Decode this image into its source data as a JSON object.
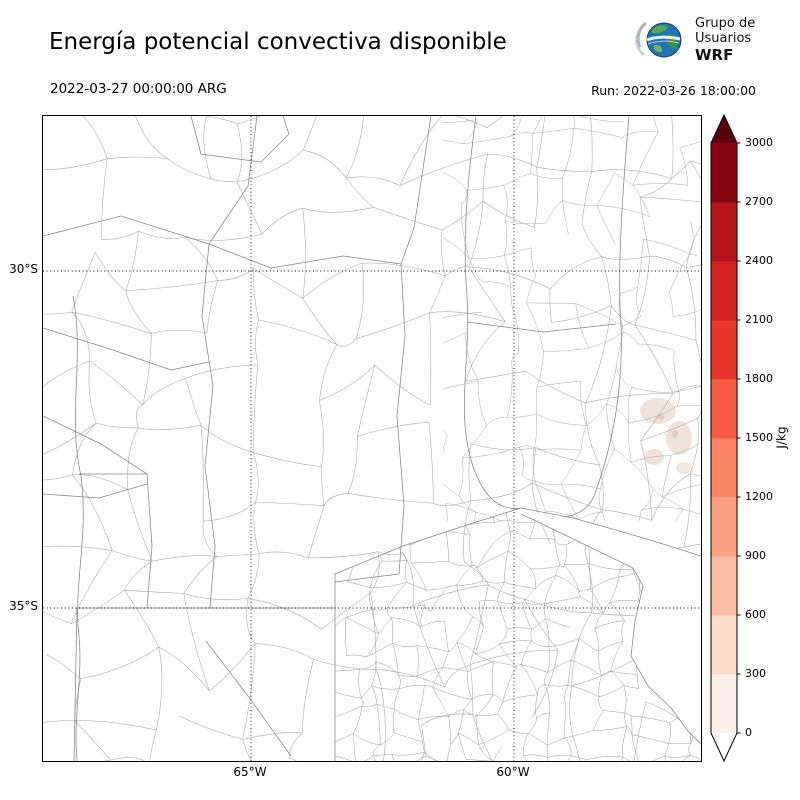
{
  "header": {
    "title": "Energía potencial convectiva disponible",
    "valid_time": "2022-03-27 00:00:00 ARG",
    "run_label": "Run: 2022-03-26 18:00:00",
    "logo": {
      "line1": "Grupo de",
      "line2": "Usuarios",
      "line3": "WRF"
    }
  },
  "map": {
    "lat_ticks": [
      {
        "label": "30°S"
      },
      {
        "label": "35°S"
      }
    ],
    "lon_ticks": [
      {
        "label": "65°W"
      },
      {
        "label": "60°W"
      }
    ],
    "cape_patches": [
      {
        "region": "northeast (Entre Ríos / Uruguay border area)",
        "approx_value_jkg": 150
      },
      {
        "region": "Río de la Plata coastal area",
        "approx_value_jkg": 150
      }
    ]
  },
  "colorbar": {
    "unit": "J/kg",
    "min": 0,
    "max": 3000,
    "ticks": [
      0,
      300,
      600,
      900,
      1200,
      1500,
      1800,
      2100,
      2400,
      2700,
      3000
    ],
    "colors": [
      "#fbf0ea",
      "#fedccc",
      "#fcbea5",
      "#fca184",
      "#fb8464",
      "#f75b40",
      "#ea362a",
      "#d32020",
      "#b61319",
      "#870310"
    ],
    "over_color": "#5c000c",
    "under_color": "#ffffff"
  }
}
